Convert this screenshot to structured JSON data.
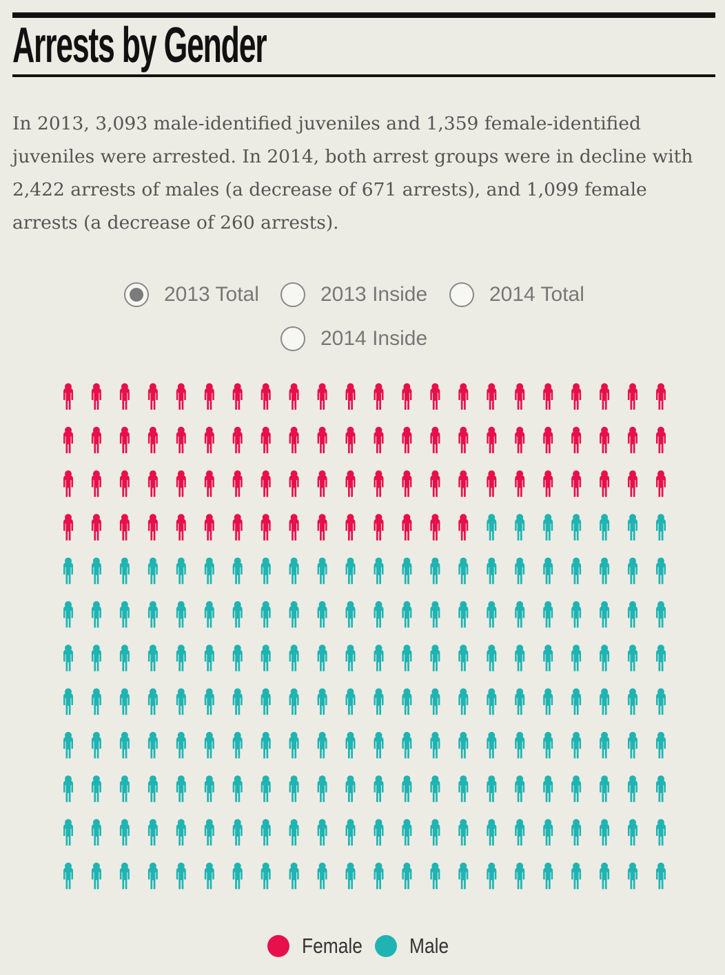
{
  "header": {
    "title": "Arrests by Gender",
    "intro": "In 2013, 3,093 male-identified juveniles and 1,359 female-identified juveniles were arrested. In 2014, both arrest groups were in decline with 2,422 arrests of males (a decrease of 671 arrests), and 1,099 female arrests (a decrease of 260 arrests)."
  },
  "filters": {
    "options": [
      {
        "label": "2013 Total",
        "selected": true
      },
      {
        "label": "2013 Inside",
        "selected": false
      },
      {
        "label": "2014 Total",
        "selected": false
      },
      {
        "label": "2014 Inside",
        "selected": false
      }
    ]
  },
  "legend": {
    "female_label": "Female",
    "male_label": "Male"
  },
  "colors": {
    "female": "#e8104a",
    "male": "#1fb3b1",
    "background": "#ecebe4"
  },
  "chart_data": {
    "type": "pictogram",
    "title": "Arrests by Gender",
    "subset": "2013 Total",
    "columns": 22,
    "rows": 12,
    "total_icons": 264,
    "series": [
      {
        "name": "Female",
        "icons": 81,
        "color": "#e8104a"
      },
      {
        "name": "Male",
        "icons": 183,
        "color": "#1fb3b1"
      }
    ]
  }
}
